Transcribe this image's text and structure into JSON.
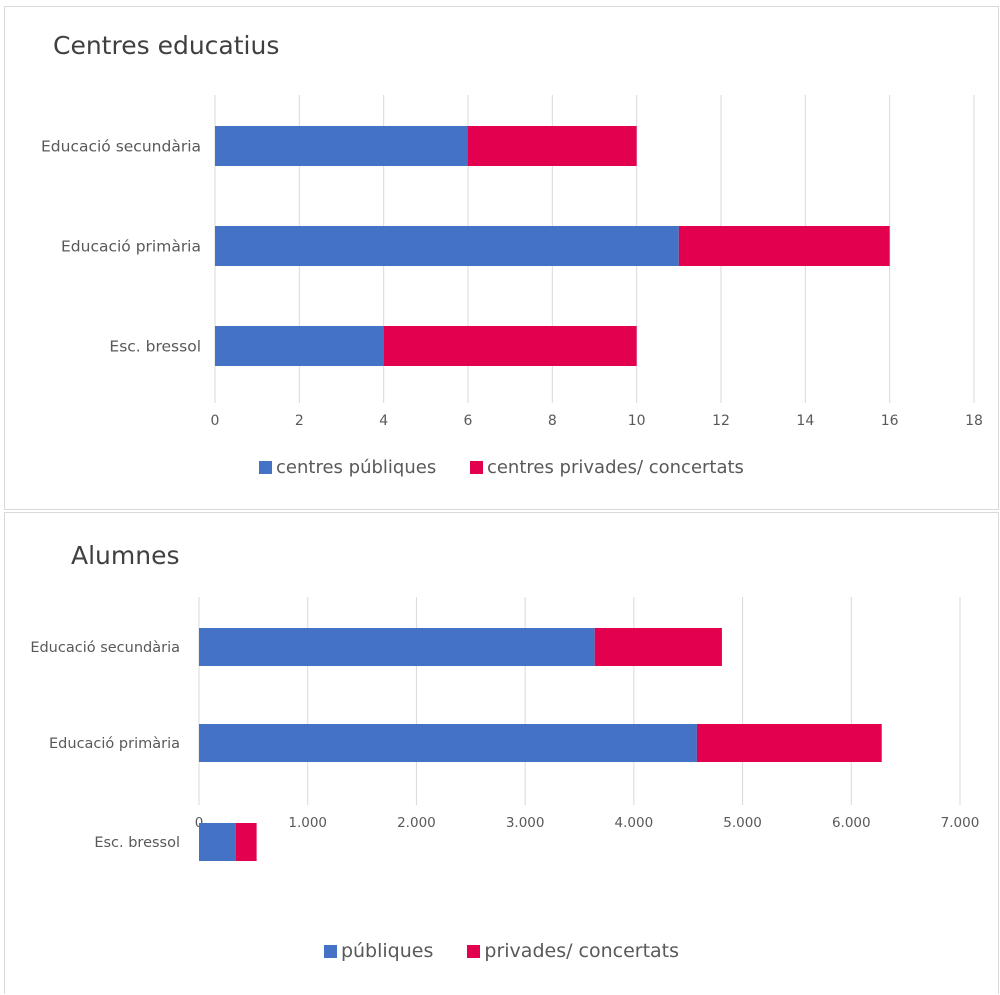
{
  "colors": {
    "public": "#4472c4",
    "private": "#e2004f",
    "grid": "#d9d9d9",
    "axis_text": "#595959"
  },
  "chart_data": [
    {
      "type": "bar",
      "orientation": "horizontal",
      "stacked": true,
      "title": "Centres educatius",
      "categories": [
        "Educació secundària",
        "Educació primària",
        "Esc. bressol"
      ],
      "series": [
        {
          "name": "centres públiques",
          "values": [
            6,
            11,
            4
          ]
        },
        {
          "name": "centres privades/ concertats",
          "values": [
            4,
            5,
            6
          ]
        }
      ],
      "xlim": [
        0,
        18
      ],
      "xticks": [
        0,
        2,
        4,
        6,
        8,
        10,
        12,
        14,
        16,
        18
      ],
      "xtick_labels": [
        "0",
        "2",
        "4",
        "6",
        "8",
        "10",
        "12",
        "14",
        "16",
        "18"
      ],
      "grid": "vertical",
      "legend": "bottom"
    },
    {
      "type": "bar",
      "orientation": "horizontal",
      "stacked": true,
      "title": "Alumnes",
      "categories": [
        "Educació secundària",
        "Educació primària",
        "Esc. bressol"
      ],
      "series": [
        {
          "name": "públiques",
          "values": [
            3640,
            4580,
            340
          ]
        },
        {
          "name": "privades/ concertats",
          "values": [
            1170,
            1700,
            190
          ]
        }
      ],
      "xlim": [
        0,
        7000
      ],
      "xticks": [
        0,
        1000,
        2000,
        3000,
        4000,
        5000,
        6000,
        7000
      ],
      "xtick_labels": [
        "0",
        "1.000",
        "2.000",
        "3.000",
        "4.000",
        "5.000",
        "6.000",
        "7.000"
      ],
      "grid": "vertical",
      "legend": "bottom"
    }
  ]
}
